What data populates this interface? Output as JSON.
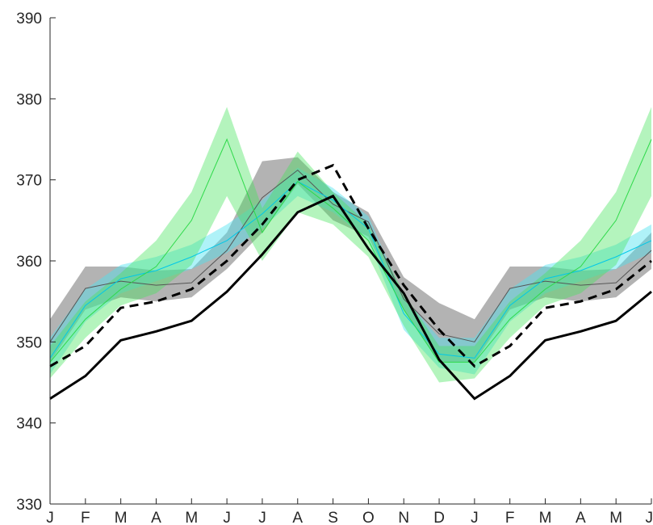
{
  "chart_data": {
    "type": "line",
    "title": "",
    "xlabel": "",
    "ylabel": "",
    "x_tick_labels": [
      "J",
      "F",
      "M",
      "A",
      "M",
      "J",
      "J",
      "A",
      "S",
      "O",
      "N",
      "D",
      "J",
      "F",
      "M",
      "A",
      "M",
      "J"
    ],
    "xlim": [
      0,
      17
    ],
    "ylim": [
      330,
      390
    ],
    "y_ticks": [
      330,
      340,
      350,
      360,
      370,
      380,
      390
    ],
    "grid": false,
    "legend": "none",
    "bands": [
      {
        "color": "#a6a6a6",
        "opacity": 0.85,
        "lower": [
          347.5,
          354.0,
          355.5,
          355.0,
          355.5,
          359.0,
          363.5,
          369.5,
          365.0,
          363.0,
          354.0,
          347.5,
          347.5,
          354.0,
          355.5,
          355.0,
          355.5,
          359.0
        ],
        "upper": [
          352.8,
          359.3,
          359.3,
          358.8,
          359.0,
          363.5,
          372.3,
          372.8,
          368.5,
          366.0,
          358.0,
          354.8,
          352.8,
          359.3,
          359.3,
          358.8,
          359.0,
          363.5
        ]
      },
      {
        "color": "#4de3f0",
        "opacity": 0.45,
        "lower": [
          346.0,
          352.5,
          356.0,
          357.5,
          359.0,
          361.0,
          364.0,
          368.0,
          366.0,
          362.5,
          351.5,
          346.8,
          346.0,
          352.5,
          356.0,
          357.5,
          359.0,
          361.0
        ],
        "upper": [
          350.5,
          356.5,
          359.5,
          360.5,
          362.0,
          364.5,
          367.5,
          371.5,
          369.0,
          365.5,
          355.5,
          350.5,
          350.5,
          356.5,
          359.5,
          360.5,
          362.0,
          364.5
        ]
      },
      {
        "color": "#44e35a",
        "opacity": 0.4,
        "lower": [
          345.5,
          350.5,
          354.5,
          356.0,
          359.5,
          368.0,
          360.0,
          366.0,
          364.5,
          360.5,
          352.0,
          345.0,
          345.5,
          350.5,
          354.5,
          356.0,
          359.5,
          368.0
        ],
        "upper": [
          349.5,
          355.0,
          358.5,
          362.5,
          368.5,
          379.0,
          366.5,
          373.5,
          368.5,
          364.5,
          356.0,
          349.5,
          349.5,
          355.0,
          358.5,
          362.5,
          368.5,
          379.0
        ]
      }
    ],
    "series": [
      {
        "color": "#555555",
        "width": 1,
        "dash": "none",
        "values": [
          350.0,
          356.6,
          357.5,
          357.0,
          357.3,
          361.3,
          367.8,
          371.2,
          367.0,
          364.8,
          355.3,
          351.0,
          350.0,
          356.6,
          357.5,
          357.0,
          357.3,
          361.3
        ]
      },
      {
        "color": "#00c8e8",
        "width": 1,
        "dash": "none",
        "values": [
          348.0,
          354.5,
          357.8,
          358.8,
          360.5,
          362.5,
          365.8,
          369.8,
          367.5,
          364.0,
          353.5,
          348.5,
          348.0,
          354.5,
          357.8,
          358.8,
          360.5,
          362.5
        ]
      },
      {
        "color": "#2ed94a",
        "width": 1,
        "dash": "none",
        "values": [
          347.5,
          352.8,
          356.5,
          359.3,
          365.0,
          375.0,
          363.5,
          369.8,
          366.5,
          362.5,
          354.0,
          347.5,
          347.5,
          352.8,
          356.5,
          359.3,
          365.0,
          375.0
        ]
      },
      {
        "color": "#000000",
        "width": 3,
        "dash": "11,7",
        "values": [
          347.0,
          349.5,
          354.2,
          355.0,
          356.5,
          360.0,
          364.5,
          370.0,
          371.8,
          364.0,
          357.0,
          351.5,
          347.0,
          349.5,
          354.2,
          355.0,
          356.5,
          360.0
        ]
      },
      {
        "color": "#000000",
        "width": 3,
        "dash": "none",
        "values": [
          343.0,
          345.8,
          350.2,
          351.3,
          352.6,
          356.2,
          360.8,
          366.0,
          368.0,
          361.5,
          356.0,
          347.8,
          343.0,
          345.8,
          350.2,
          351.3,
          352.6,
          356.2
        ]
      }
    ]
  }
}
